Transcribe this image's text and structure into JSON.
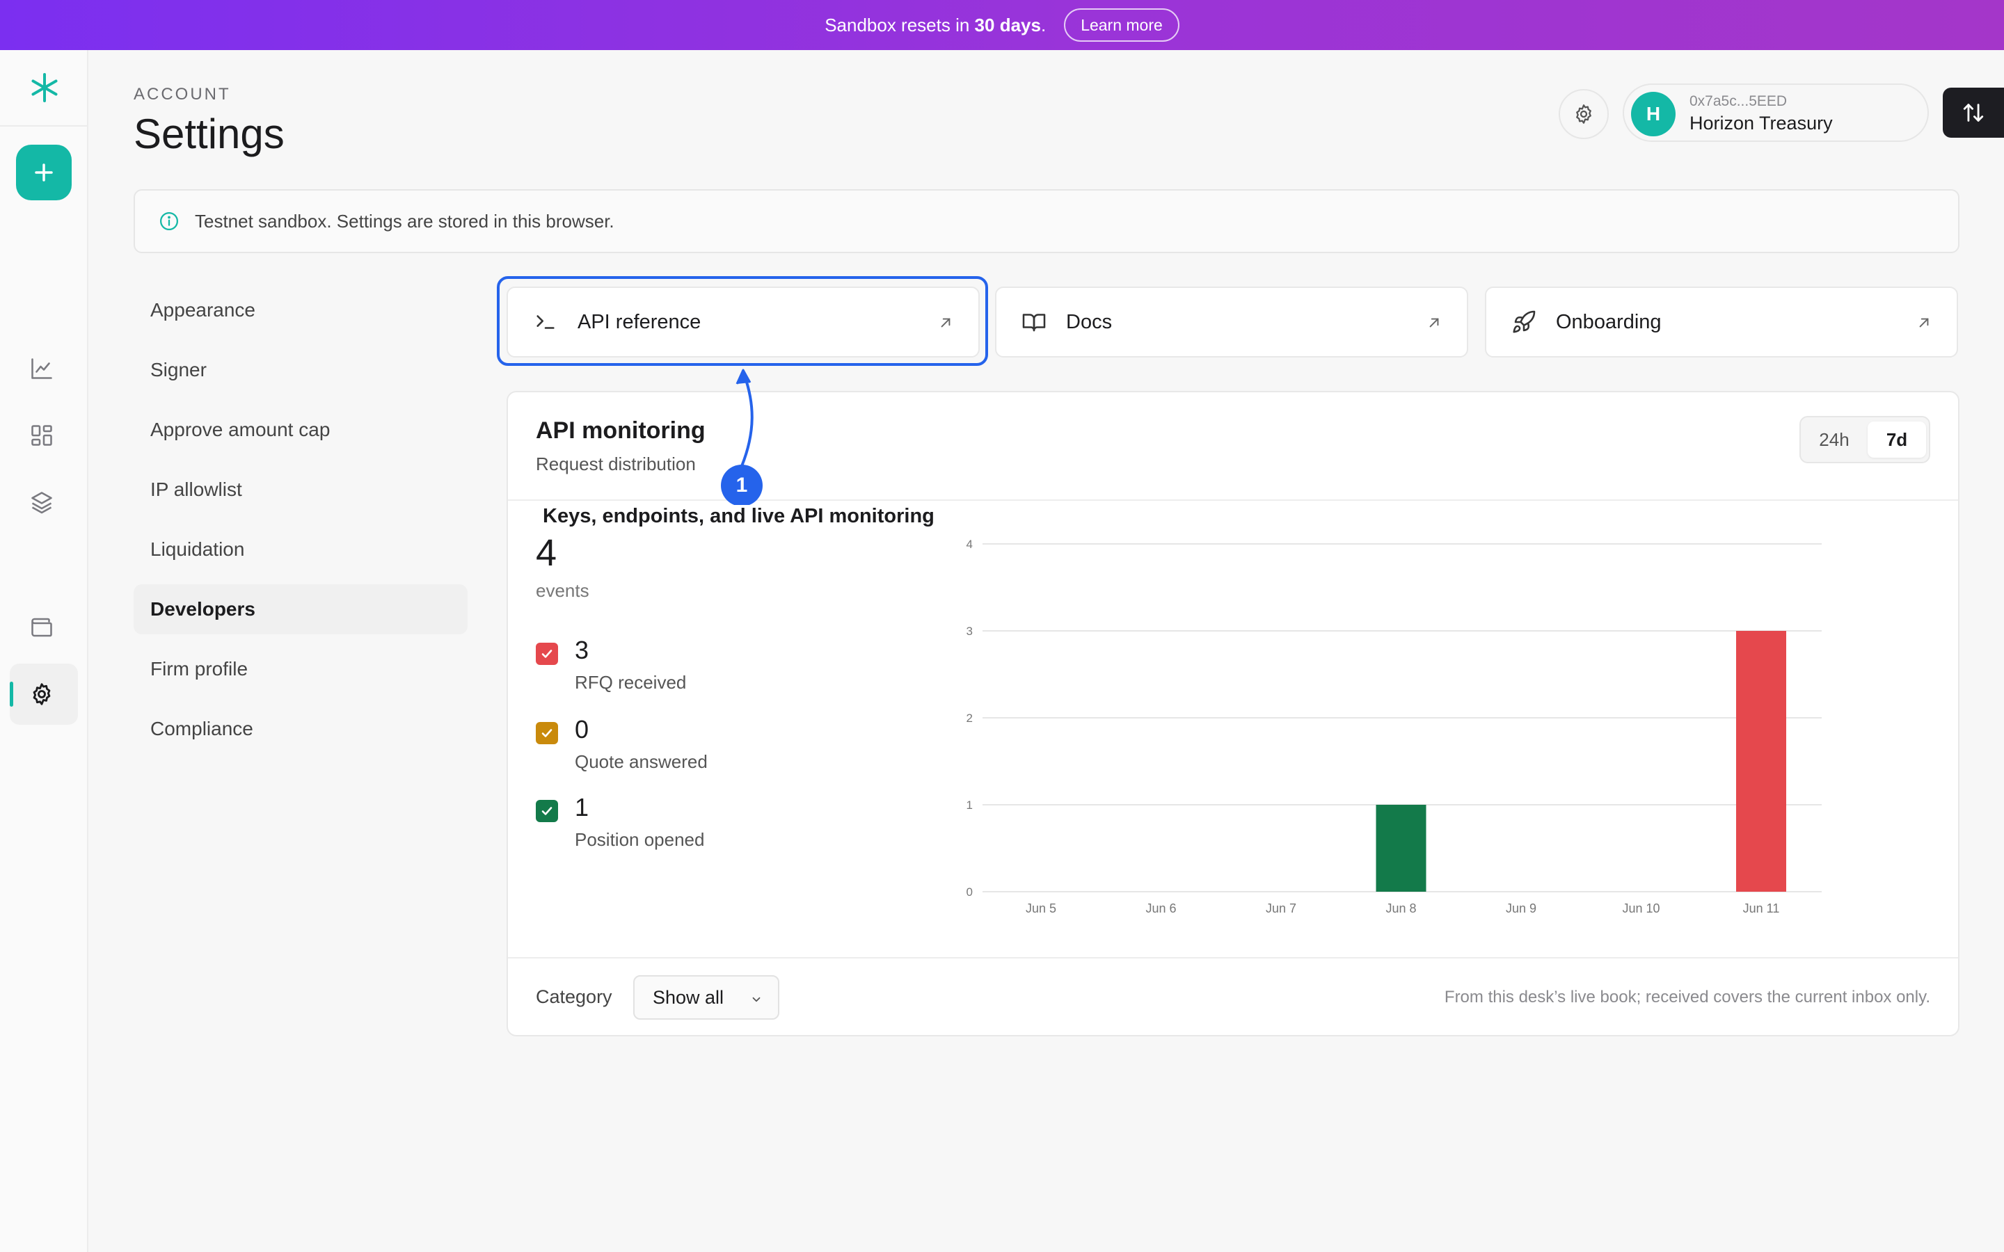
{
  "banner": {
    "text_before": "Sandbox resets in ",
    "text_bold": "30 days",
    "text_after": ".",
    "learn_more": "Learn more"
  },
  "header": {
    "eyebrow": "ACCOUNT",
    "title": "Settings"
  },
  "account": {
    "avatar_initial": "H",
    "address": "0x7a5c...5EED",
    "name": "Horizon Treasury"
  },
  "info_banner": {
    "text": "Testnet sandbox. Settings are stored in this browser."
  },
  "settings_nav": [
    {
      "label": "Appearance",
      "active": false
    },
    {
      "label": "Signer",
      "active": false
    },
    {
      "label": "Approve amount cap",
      "active": false
    },
    {
      "label": "IP allowlist",
      "active": false
    },
    {
      "label": "Liquidation",
      "active": false
    },
    {
      "label": "Developers",
      "active": true
    },
    {
      "label": "Firm profile",
      "active": false
    },
    {
      "label": "Compliance",
      "active": false
    }
  ],
  "link_cards": [
    {
      "label": "API reference",
      "icon": "terminal-icon"
    },
    {
      "label": "Docs",
      "icon": "book-icon"
    },
    {
      "label": "Onboarding",
      "icon": "rocket-icon"
    }
  ],
  "monitoring": {
    "title": "API monitoring",
    "subtitle": "Request distribution",
    "ranges": [
      "24h",
      "7d"
    ],
    "selected_range": "7d",
    "total": "4",
    "total_label": "events",
    "stats": [
      {
        "value": "3",
        "label": "RFQ received",
        "color": "#e5484d"
      },
      {
        "value": "0",
        "label": "Quote answered",
        "color": "#c98a0c"
      },
      {
        "value": "1",
        "label": "Position opened",
        "color": "#137a4a"
      }
    ],
    "category_label": "Category",
    "category_value": "Show all",
    "footnote": "From this desk’s live book; received covers the current inbox only."
  },
  "chart_data": {
    "type": "bar",
    "categories": [
      "Jun 5",
      "Jun 6",
      "Jun 7",
      "Jun 8",
      "Jun 9",
      "Jun 10",
      "Jun 11"
    ],
    "series": [
      {
        "name": "RFQ received",
        "color": "#e5484d",
        "values": [
          0,
          0,
          0,
          0,
          0,
          0,
          3
        ]
      },
      {
        "name": "Quote answered",
        "color": "#c98a0c",
        "values": [
          0,
          0,
          0,
          0,
          0,
          0,
          0
        ]
      },
      {
        "name": "Position opened",
        "color": "#137a4a",
        "values": [
          0,
          0,
          0,
          1,
          0,
          0,
          0
        ]
      }
    ],
    "yticks": [
      "0",
      "1",
      "2",
      "3",
      "4"
    ],
    "ylim": [
      0,
      4
    ],
    "grid": true,
    "stacked": true
  },
  "annotation": {
    "number": "1",
    "text": "Keys, endpoints, and live API monitoring"
  }
}
